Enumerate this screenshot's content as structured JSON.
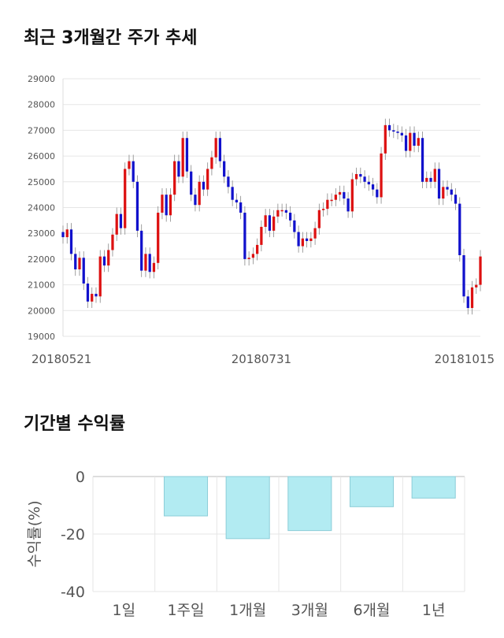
{
  "candle_title": "최근 3개월간 주가 추세",
  "returns_title": "기간별 수익률",
  "chart_data": [
    {
      "type": "candlestick",
      "title": "최근 3개월간 주가 추세",
      "ylim": [
        19000,
        29000
      ],
      "y_ticks": [
        19000,
        20000,
        21000,
        22000,
        23000,
        24000,
        25000,
        26000,
        27000,
        28000,
        29000
      ],
      "x_tick_labels": [
        "20180521",
        "20180731",
        "20181015"
      ],
      "x_tick_index": [
        0,
        48,
        95
      ],
      "colors": {
        "up": "#dd1111",
        "down": "#1111cc"
      },
      "grid": true,
      "closes": [
        22850,
        23150,
        22200,
        21600,
        22050,
        21050,
        20350,
        20650,
        20550,
        22100,
        21750,
        22350,
        22950,
        23750,
        23200,
        25500,
        25800,
        25000,
        23100,
        21550,
        22200,
        21500,
        21850,
        23800,
        24500,
        23700,
        24500,
        25800,
        25200,
        26700,
        25400,
        24500,
        24100,
        25000,
        24700,
        25500,
        25950,
        26700,
        25800,
        25200,
        24800,
        24300,
        24200,
        23800,
        22000,
        22050,
        22200,
        22550,
        23250,
        23700,
        23100,
        23650,
        23900,
        23900,
        23800,
        23500,
        23050,
        22500,
        22800,
        22700,
        22800,
        23200,
        23900,
        23950,
        24300,
        24300,
        24500,
        24600,
        24350,
        23850,
        25100,
        25300,
        25200,
        25000,
        24900,
        24700,
        24400,
        26100,
        27200,
        27000,
        26950,
        26900,
        26800,
        26200,
        26900,
        26400,
        26700,
        25000,
        25150,
        25000,
        25500,
        24350,
        24800,
        24700,
        24500,
        24150,
        22150,
        20550,
        20100,
        20900,
        21000,
        22100
      ],
      "ohlc_note": "values read off the candle bodies"
    },
    {
      "type": "bar",
      "title": "기간별 수익률",
      "categories": [
        "1일",
        "1주일",
        "1개월",
        "3개월",
        "6개월",
        "1년"
      ],
      "values": [
        0,
        -13.7,
        -21.6,
        -18.8,
        -10.5,
        -7.5
      ],
      "ylabel": "수익률(%)",
      "ylim": [
        -40,
        0
      ],
      "y_ticks": [
        0,
        -20,
        -40
      ],
      "bar_color": "#b2ebf2",
      "grid": true
    }
  ]
}
